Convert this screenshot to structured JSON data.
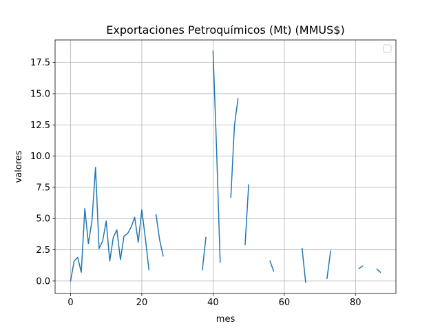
{
  "chart_data": {
    "type": "line",
    "title": "Exportaciones Petroquímicos (Mt) (MMUS$)",
    "xlabel": "mes",
    "ylabel": "valores",
    "xlim": [
      -4.35,
      91.35
    ],
    "ylim": [
      -1.0,
      19.3
    ],
    "xticks": [
      0,
      20,
      40,
      60,
      80
    ],
    "xtick_labels": [
      "0",
      "20",
      "40",
      "60",
      "80"
    ],
    "yticks": [
      0.0,
      2.5,
      5.0,
      7.5,
      10.0,
      12.5,
      15.0,
      17.5
    ],
    "ytick_labels": [
      "0.0",
      "2.5",
      "5.0",
      "7.5",
      "10.0",
      "12.5",
      "15.0",
      "17.5"
    ],
    "grid": true,
    "legend": "top-right, empty",
    "series_color": "#1f77b4",
    "series": [
      {
        "x": [
          0,
          1,
          2,
          3,
          4,
          5,
          6,
          7,
          8,
          9,
          10,
          11,
          12,
          13,
          14,
          15,
          16,
          17,
          18,
          19,
          20,
          21,
          22,
          23,
          24,
          25,
          26,
          27,
          28,
          29,
          30,
          31,
          32,
          33,
          34,
          35,
          36,
          37,
          38,
          39,
          40,
          41,
          42,
          43,
          44,
          45,
          46,
          47,
          48,
          49,
          50,
          51,
          52,
          53,
          54,
          55,
          56,
          57,
          58,
          59,
          60,
          61,
          62,
          63,
          64,
          65,
          66,
          67,
          68,
          69,
          70,
          71,
          72,
          73,
          74,
          75,
          76,
          77,
          78,
          79,
          80,
          81,
          82,
          83,
          84,
          85,
          86,
          87
        ],
        "values": [
          0.0,
          1.6,
          1.9,
          0.7,
          5.8,
          3.0,
          4.8,
          9.1,
          2.6,
          3.2,
          4.8,
          1.6,
          3.5,
          4.1,
          1.7,
          3.6,
          3.8,
          4.3,
          5.1,
          3.1,
          5.7,
          3.4,
          0.9,
          null,
          5.3,
          3.3,
          2.0,
          null,
          null,
          null,
          null,
          null,
          null,
          null,
          null,
          null,
          null,
          0.9,
          3.5,
          null,
          18.4,
          10.5,
          1.5,
          null,
          null,
          6.7,
          12.4,
          14.6,
          null,
          2.9,
          7.7,
          null,
          null,
          null,
          null,
          null,
          1.6,
          0.8,
          null,
          null,
          null,
          null,
          null,
          null,
          null,
          2.6,
          -0.1,
          null,
          null,
          null,
          null,
          null,
          0.2,
          2.4,
          null,
          null,
          null,
          null,
          null,
          null,
          null,
          1.0,
          1.2,
          null,
          null,
          null,
          0.95,
          0.7
        ]
      }
    ]
  }
}
